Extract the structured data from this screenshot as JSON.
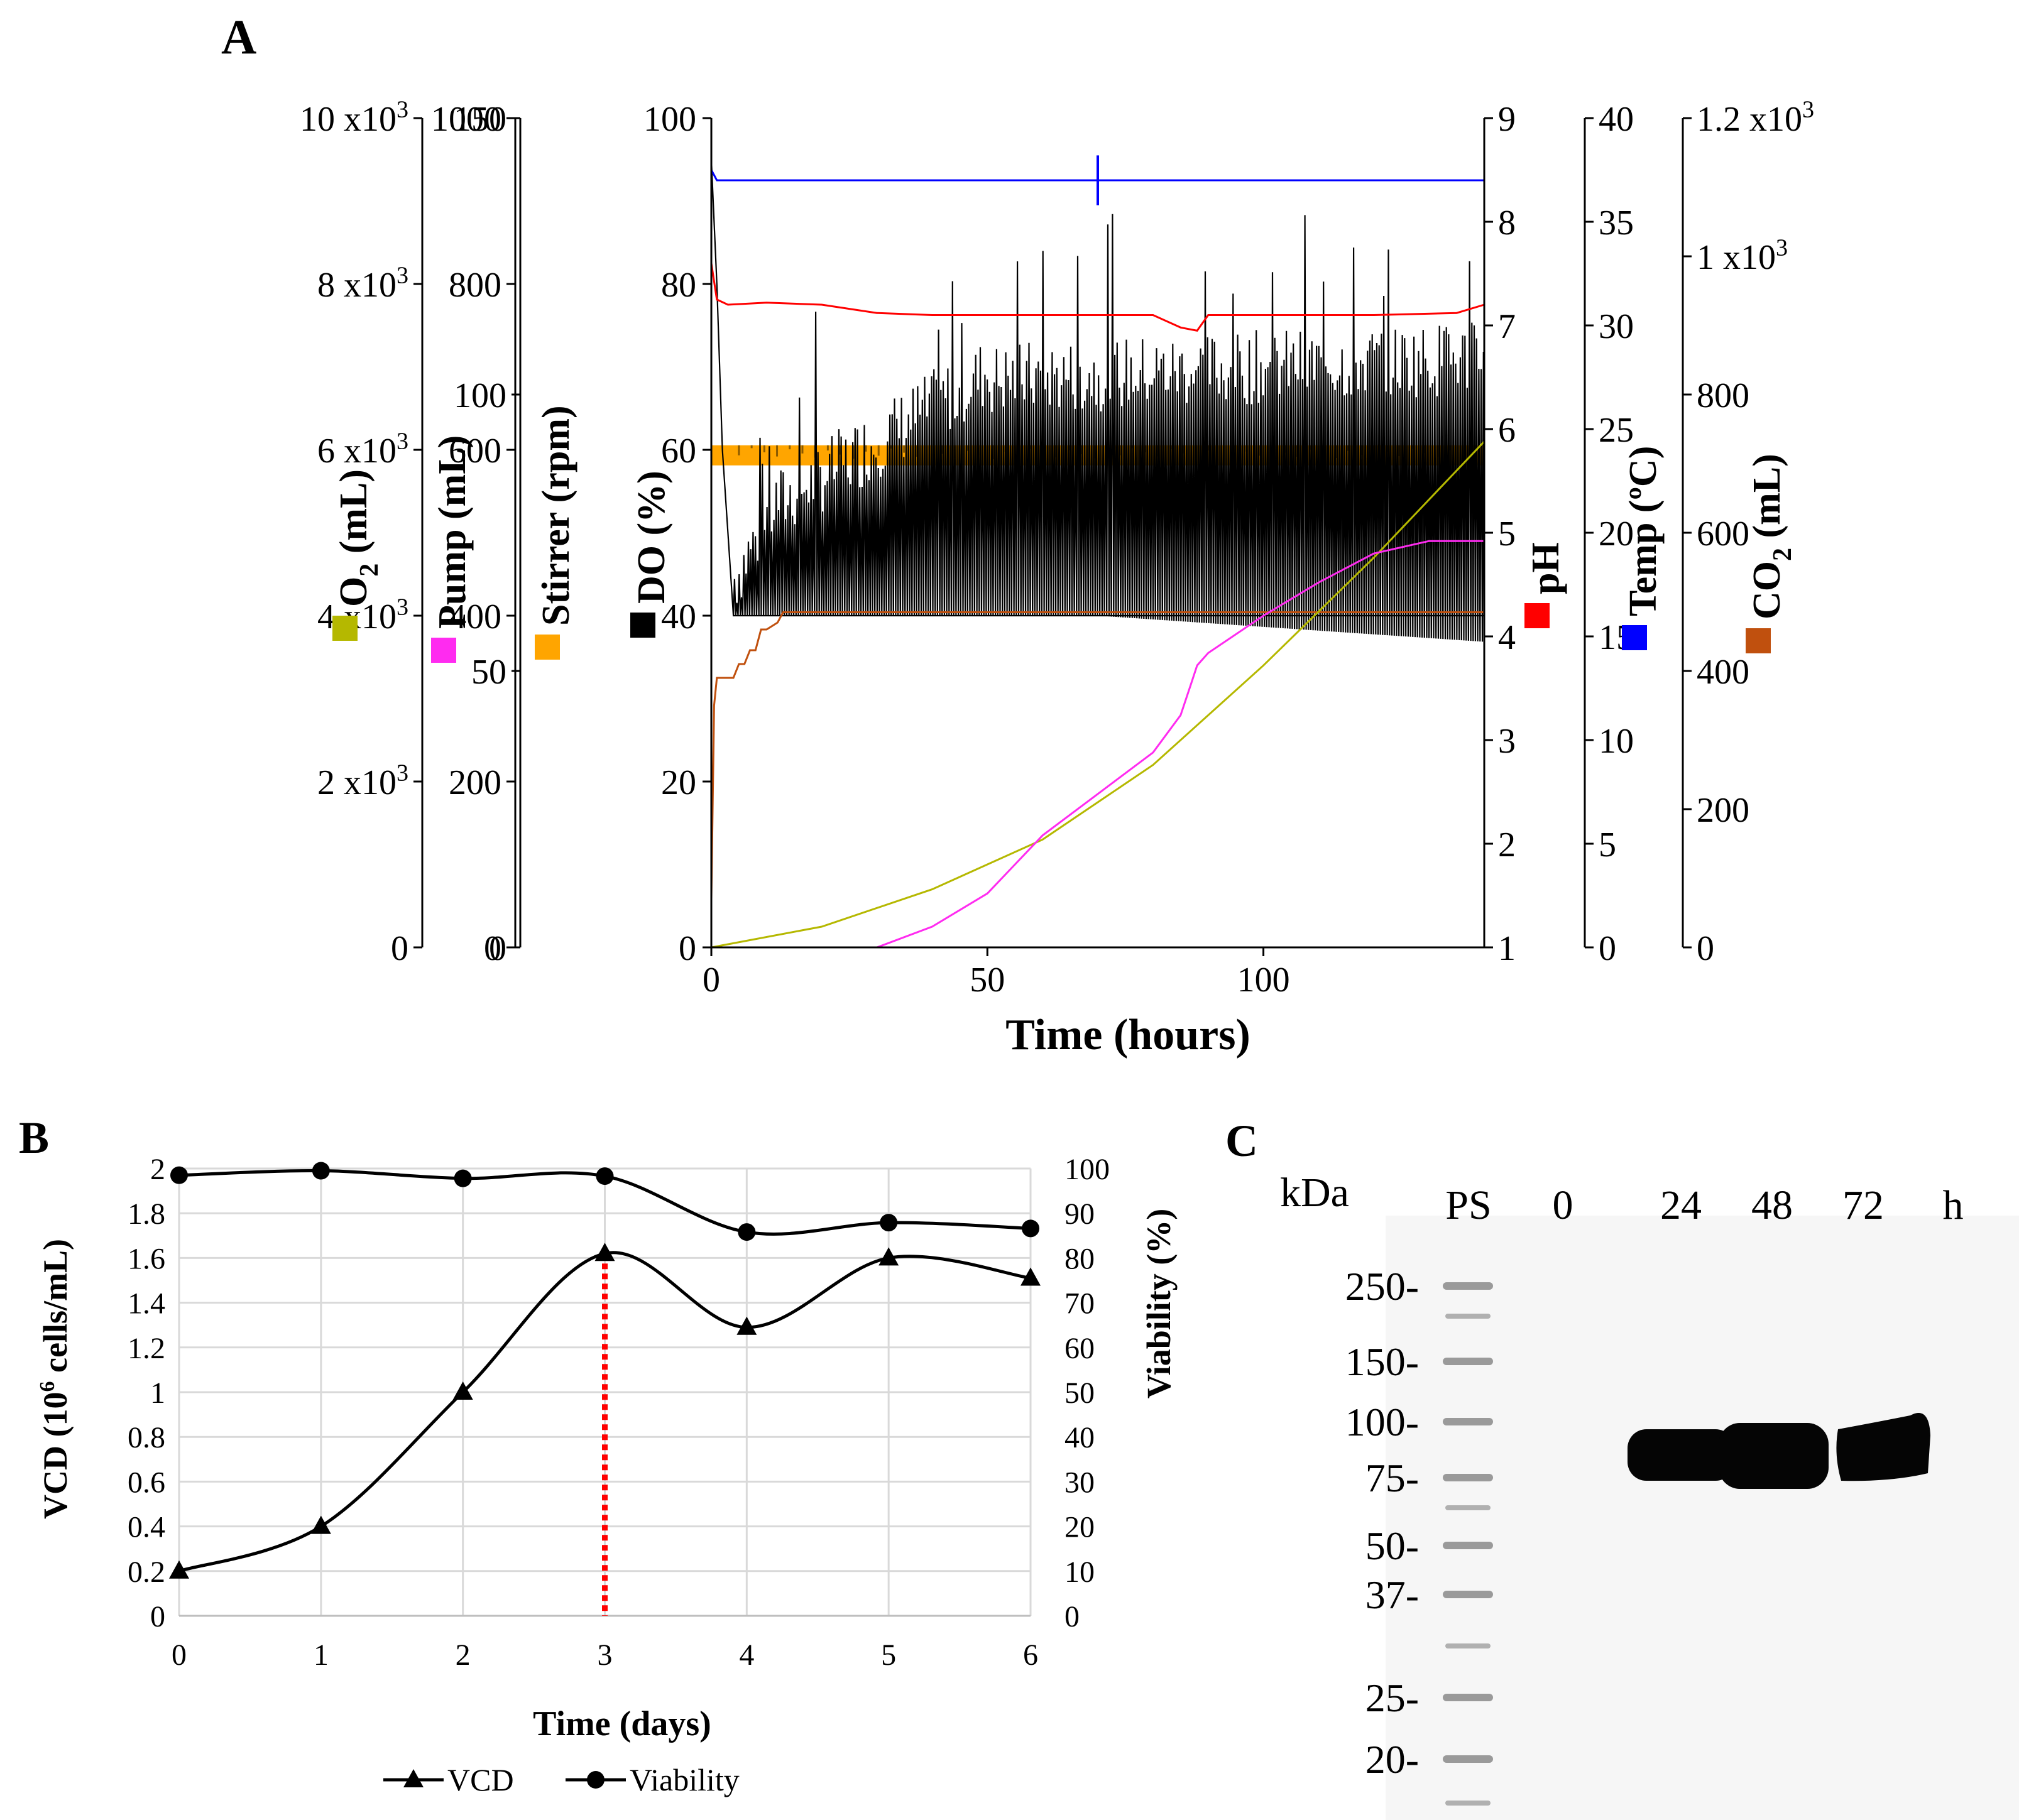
{
  "panels": {
    "a_label": "A",
    "b_label": "B",
    "c_label": "C"
  },
  "colors": {
    "do": "#000000",
    "stirrer": "#ffa500",
    "o2": "#b5b800",
    "pump": "#ff2bf0",
    "ph": "#ff0000",
    "temp": "#0000ff",
    "co2": "#c0500e",
    "marker": "#ff0000"
  },
  "chart_data": [
    {
      "type": "line",
      "title": "A",
      "xlabel": "Time (hours)",
      "xlim": [
        0,
        140
      ],
      "x_ticks": [
        "0",
        "50",
        "100"
      ],
      "axes": {
        "o2": {
          "label_main": "O",
          "label_sub": "2",
          "label_tail": " (mL)",
          "range": [
            0,
            10000
          ],
          "ticks": [
            {
              "v": 0,
              "base": "0"
            },
            {
              "v": 2000,
              "base": "2 x10",
              "exp": "3"
            },
            {
              "v": 4000,
              "base": "4 x10",
              "exp": "3"
            },
            {
              "v": 6000,
              "base": "6 x10",
              "exp": "3"
            },
            {
              "v": 8000,
              "base": "8 x10",
              "exp": "3"
            },
            {
              "v": 10000,
              "base": "10 x10",
              "exp": "3"
            }
          ]
        },
        "pump": {
          "label": "Pump (mL)",
          "range": [
            0,
            1000
          ],
          "ticks": [
            "0",
            "200",
            "400",
            "600",
            "800",
            "1000"
          ]
        },
        "stirrer": {
          "label": "Stirrer (rpm)",
          "range": [
            0,
            150
          ],
          "ticks": [
            "0",
            "50",
            "100",
            "150"
          ]
        },
        "do": {
          "label": "DO (%)",
          "range": [
            0,
            100
          ],
          "ticks": [
            "0",
            "20",
            "40",
            "60",
            "80",
            "100"
          ]
        },
        "ph": {
          "label": "pH",
          "range": [
            1,
            9
          ],
          "ticks": [
            "1",
            "2",
            "3",
            "4",
            "5",
            "6",
            "7",
            "8",
            "9"
          ]
        },
        "temp": {
          "label": "Temp (ºC)",
          "range": [
            0,
            40
          ],
          "ticks": [
            "0",
            "5",
            "10",
            "15",
            "20",
            "25",
            "30",
            "35",
            "40"
          ]
        },
        "co2": {
          "label_main": "CO",
          "label_sub": "2",
          "label_tail": " (mL)",
          "range": [
            0,
            1200
          ],
          "ticks": [
            {
              "v": 0,
              "base": "0"
            },
            {
              "v": 200,
              "base": "200"
            },
            {
              "v": 400,
              "base": "400"
            },
            {
              "v": 600,
              "base": "600"
            },
            {
              "v": 800,
              "base": "800"
            },
            {
              "v": 1000,
              "base": "1 x10",
              "exp": "3"
            },
            {
              "v": 1200,
              "base": "1.2 x10",
              "exp": "3"
            }
          ]
        }
      },
      "series": [
        {
          "name": "Temp",
          "axis": "temp",
          "x": [
            0,
            1,
            70,
            140
          ],
          "y": [
            37.5,
            37.0,
            37.0,
            37.0
          ]
        },
        {
          "name": "pH",
          "axis": "ph",
          "x": [
            0,
            1,
            3,
            10,
            20,
            30,
            40,
            60,
            80,
            85,
            88,
            90,
            100,
            120,
            135,
            140
          ],
          "y": [
            7.6,
            7.25,
            7.2,
            7.22,
            7.2,
            7.12,
            7.1,
            7.1,
            7.1,
            6.98,
            6.95,
            7.1,
            7.1,
            7.1,
            7.12,
            7.2
          ]
        },
        {
          "name": "CO2",
          "axis": "co2",
          "x": [
            0,
            0.5,
            1,
            2,
            4,
            5,
            6,
            7,
            8,
            9,
            10,
            12,
            13,
            140
          ],
          "y": [
            70,
            350,
            390,
            390,
            390,
            410,
            410,
            430,
            430,
            460,
            460,
            470,
            485,
            485
          ]
        },
        {
          "name": "O2",
          "axis": "o2",
          "x": [
            0,
            20,
            40,
            60,
            80,
            100,
            120,
            140
          ],
          "y": [
            0,
            250,
            700,
            1300,
            2200,
            3400,
            4700,
            6100
          ]
        },
        {
          "name": "Pump",
          "axis": "pump",
          "x": [
            30,
            40,
            50,
            55,
            60,
            70,
            80,
            85,
            87,
            88,
            90,
            100,
            110,
            120,
            130,
            140
          ],
          "y": [
            0,
            25,
            65,
            100,
            135,
            185,
            235,
            280,
            320,
            340,
            355,
            400,
            440,
            475,
            490,
            490
          ]
        },
        {
          "name": "Stirrer",
          "axis": "stirrer",
          "x": [
            0,
            140
          ],
          "y": [
            89,
            89
          ]
        },
        {
          "name": "DO",
          "axis": "do",
          "x": [
            0,
            1,
            2,
            3,
            4,
            140
          ],
          "y": [
            95,
            80,
            60,
            50,
            40,
            40
          ]
        }
      ]
    },
    {
      "type": "line",
      "title": "B",
      "xlabel": "Time (days)",
      "ylabel": "VCD (10⁶ cells/mL)",
      "y2label": "Viability (%)",
      "categories": [
        "0",
        "1",
        "2",
        "3",
        "4",
        "5",
        "6"
      ],
      "ylim": [
        0,
        2
      ],
      "y_ticks": [
        "0",
        "0.2",
        "0.4",
        "0.6",
        "0.8",
        "1",
        "1.2",
        "1.4",
        "1.6",
        "1.8",
        "2"
      ],
      "y2lim": [
        0,
        100
      ],
      "y2_ticks": [
        "0",
        "10",
        "20",
        "30",
        "40",
        "50",
        "60",
        "70",
        "80",
        "90",
        "100"
      ],
      "series": [
        {
          "name": "VCD",
          "marker": "triangle",
          "values": [
            0.2,
            0.4,
            1.0,
            1.62,
            1.29,
            1.6,
            1.51
          ]
        },
        {
          "name": "Viability",
          "marker": "circle",
          "axis": "right",
          "values": [
            98.5,
            99.5,
            97.8,
            98.3,
            85.8,
            87.9,
            86.6
          ]
        }
      ],
      "marker_line": {
        "x": 3,
        "y": 1.62,
        "style": "dotted-red"
      },
      "legend": [
        {
          "name": "VCD"
        },
        {
          "name": "Viability"
        }
      ]
    },
    {
      "type": "blot",
      "title": "C",
      "unit_label": "kDa",
      "lanes": [
        "PS",
        "0",
        "24",
        "48",
        "72",
        "h"
      ],
      "markers_kda": [
        "250-",
        "150-",
        "100-",
        "75-",
        "50-",
        "37-",
        "25-",
        "20-"
      ],
      "band_kda": 85,
      "band_lanes": [
        "24",
        "48",
        "72"
      ]
    }
  ]
}
